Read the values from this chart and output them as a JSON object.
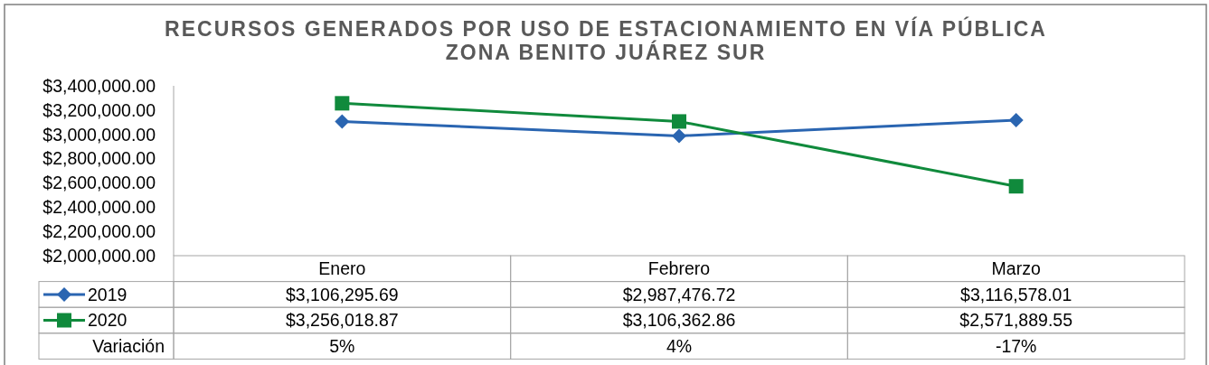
{
  "chart_data": {
    "type": "line",
    "title": "RECURSOS GENERADOS POR USO DE ESTACIONAMIENTO EN VÍA PÚBLICA\nZONA BENITO JUÁREZ SUR",
    "categories": [
      "Enero",
      "Febrero",
      "Marzo"
    ],
    "series": [
      {
        "name": "2019",
        "color": "#2a65b1",
        "marker": "diamond",
        "values": [
          3106295.69,
          2987476.72,
          3116578.01
        ],
        "value_labels": [
          "$3,106,295.69",
          "$2,987,476.72",
          "$3,116,578.01"
        ]
      },
      {
        "name": "2020",
        "color": "#108a3c",
        "marker": "square",
        "values": [
          3256018.87,
          3106362.86,
          2571889.55
        ],
        "value_labels": [
          "$3,256,018.87",
          "$3,106,362.86",
          "$2,571,889.55"
        ]
      }
    ],
    "ylim": [
      2000000,
      3400000
    ],
    "yticks": [
      {
        "value": 2000000,
        "label": "$2,000,000.00"
      },
      {
        "value": 2200000,
        "label": "$2,200,000.00"
      },
      {
        "value": 2400000,
        "label": "$2,400,000.00"
      },
      {
        "value": 2600000,
        "label": "$2,600,000.00"
      },
      {
        "value": 2800000,
        "label": "$2,800,000.00"
      },
      {
        "value": 3000000,
        "label": "$3,000,000.00"
      },
      {
        "value": 3200000,
        "label": "$3,200,000.00"
      },
      {
        "value": 3400000,
        "label": "$3,400,000.00"
      }
    ],
    "legend": "bottom left",
    "annotations": [
      "Variación",
      "5%",
      "4%",
      "-17%"
    ]
  }
}
